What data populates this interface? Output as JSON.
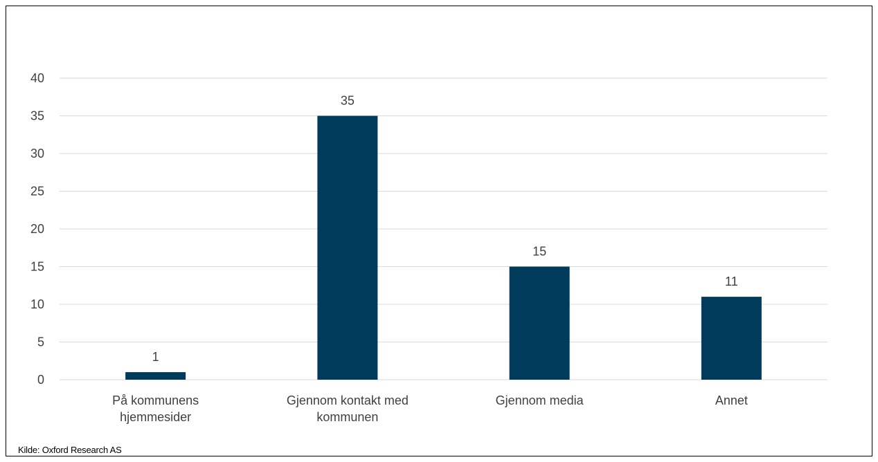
{
  "chart_data": {
    "type": "bar",
    "categories": [
      [
        "På kommunens",
        "hjemmesider"
      ],
      [
        "Gjennom kontakt med",
        "kommunen"
      ],
      [
        "Gjennom media"
      ],
      [
        "Annet"
      ]
    ],
    "values": [
      1,
      35,
      15,
      11
    ],
    "data_labels": [
      "1",
      "35",
      "15",
      "11"
    ],
    "ylim": [
      0,
      40
    ],
    "yticks": [
      0,
      5,
      10,
      15,
      20,
      25,
      30,
      35,
      40
    ],
    "grid": true,
    "legend": "none",
    "colors": {
      "bar": "#003B5C",
      "grid": "#D9D9D9",
      "text": "#404040"
    }
  },
  "source": "Kilde: Oxford Research AS"
}
